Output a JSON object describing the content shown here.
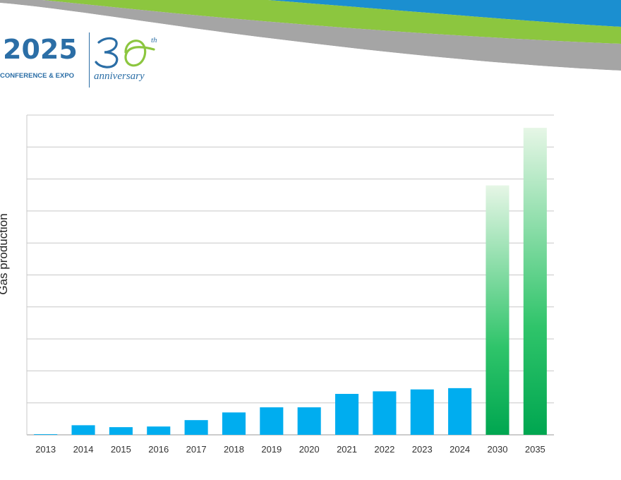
{
  "logo": {
    "year": "2025",
    "subtitle": "CONFERENCE & EXPO",
    "anniversary_number": "30",
    "anniversary_suffix": "th",
    "anniversary_word": "anniversary"
  },
  "colors": {
    "banner_green": "#8cc63f",
    "banner_blue": "#1b8fd0",
    "banner_gray": "#a5a5a5",
    "logo_blue": "#2b6ea6",
    "bar_blue": "#00adef",
    "bar_green": "#00a650",
    "grid": "#c8c8c8"
  },
  "chart_data": {
    "type": "bar",
    "title": "",
    "xlabel": "",
    "ylabel": "Gas production",
    "categories": [
      "2013",
      "2014",
      "2015",
      "2016",
      "2017",
      "2018",
      "2019",
      "2020",
      "2021",
      "2022",
      "2023",
      "2024",
      "2030",
      "2035"
    ],
    "values": [
      0.1,
      1.5,
      1.2,
      1.3,
      2.3,
      3.5,
      4.3,
      4.3,
      6.4,
      6.8,
      7.1,
      7.3,
      39.0,
      48.0
    ],
    "projected": [
      false,
      false,
      false,
      false,
      false,
      false,
      false,
      false,
      false,
      false,
      false,
      false,
      true,
      true
    ],
    "ylim": [
      0,
      50
    ],
    "gridlines": 10,
    "grid": true,
    "y_tick_labels_shown": false
  }
}
